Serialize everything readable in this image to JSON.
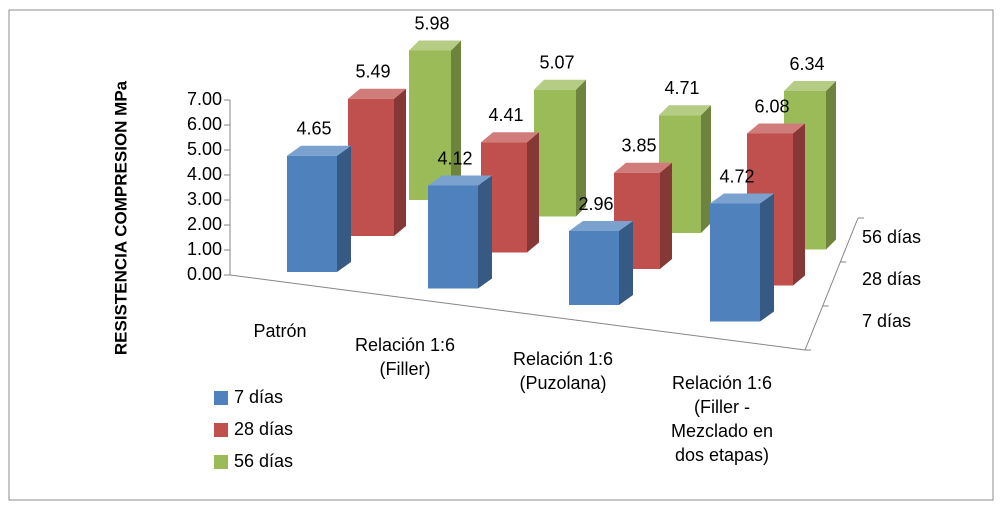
{
  "chart_data": {
    "type": "bar3d",
    "y_label": "RESISTENCIA COMPRESION MPa",
    "categories": [
      "Patrón",
      "Relación 1:6 (Filler)",
      "Relación 1:6 (Puzolana)",
      "Relación 1:6 (Filler - Mezclado en dos etapas)"
    ],
    "series": [
      {
        "name": "7 días",
        "color": "#4f81bd",
        "values": [
          4.65,
          4.12,
          2.96,
          4.72
        ]
      },
      {
        "name": "28 días",
        "color": "#c0504d",
        "values": [
          5.49,
          4.41,
          3.85,
          6.08
        ]
      },
      {
        "name": "56 días",
        "color": "#9bbb59",
        "values": [
          5.98,
          5.07,
          4.71,
          6.34
        ]
      }
    ],
    "ylim": [
      0,
      7
    ],
    "yticks": [
      {
        "value": 0,
        "label": "0.00"
      },
      {
        "value": 1,
        "label": "1.00"
      },
      {
        "value": 2,
        "label": "2.00"
      },
      {
        "value": 3,
        "label": "3.00"
      },
      {
        "value": 4,
        "label": "4.00"
      },
      {
        "value": 5,
        "label": "5.00"
      },
      {
        "value": 6,
        "label": "6.00"
      },
      {
        "value": 7,
        "label": "7.00"
      }
    ],
    "legend": "bottom-left"
  }
}
